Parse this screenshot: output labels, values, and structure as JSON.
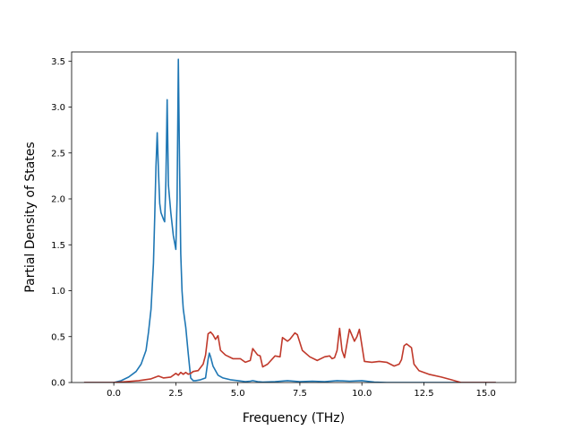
{
  "chart_data": {
    "type": "line",
    "title": "",
    "xlabel": "Frequency (THz)",
    "ylabel": "Partial Density of States",
    "xlim": [
      -1.7,
      16.2
    ],
    "ylim": [
      0,
      3.6
    ],
    "xticks": [
      0.0,
      2.5,
      5.0,
      7.5,
      10.0,
      12.5,
      15.0
    ],
    "xtick_labels": [
      "0.0",
      "2.5",
      "5.0",
      "7.5",
      "10.0",
      "12.5",
      "15.0"
    ],
    "yticks": [
      0.0,
      0.5,
      1.0,
      1.5,
      2.0,
      2.5,
      3.0,
      3.5
    ],
    "ytick_labels": [
      "0.0",
      "0.5",
      "1.0",
      "1.5",
      "2.0",
      "2.5",
      "3.0",
      "3.5"
    ],
    "grid": false,
    "legend": false,
    "series": [
      {
        "color": "#1f77b4",
        "x": [
          -1.2,
          0.0,
          0.3,
          0.6,
          0.9,
          1.1,
          1.3,
          1.4,
          1.5,
          1.6,
          1.65,
          1.7,
          1.75,
          1.8,
          1.85,
          1.9,
          2.0,
          2.05,
          2.1,
          2.15,
          2.2,
          2.3,
          2.4,
          2.5,
          2.55,
          2.6,
          2.65,
          2.7,
          2.75,
          2.8,
          2.9,
          3.0,
          3.1,
          3.2,
          3.3,
          3.5,
          3.7,
          3.8,
          3.85,
          3.9,
          4.0,
          4.2,
          4.4,
          4.7,
          5.0,
          5.3,
          5.5,
          5.6,
          5.8,
          6.0,
          6.5,
          7.0,
          7.5,
          8.0,
          8.5,
          9.0,
          9.5,
          10.0,
          10.5,
          11.0,
          12.0,
          13.0,
          14.0,
          15.4
        ],
        "values": [
          0.0,
          0.0,
          0.02,
          0.06,
          0.12,
          0.2,
          0.35,
          0.55,
          0.8,
          1.3,
          1.8,
          2.35,
          2.72,
          2.3,
          1.95,
          1.85,
          1.78,
          1.75,
          2.2,
          3.08,
          2.15,
          1.85,
          1.6,
          1.45,
          2.0,
          3.52,
          2.4,
          1.4,
          1.0,
          0.8,
          0.6,
          0.32,
          0.05,
          0.02,
          0.02,
          0.03,
          0.05,
          0.25,
          0.32,
          0.28,
          0.18,
          0.08,
          0.05,
          0.03,
          0.02,
          0.01,
          0.015,
          0.02,
          0.01,
          0.005,
          0.01,
          0.02,
          0.01,
          0.015,
          0.01,
          0.02,
          0.015,
          0.02,
          0.005,
          0.0,
          0.0,
          0.0,
          0.0,
          0.0
        ]
      },
      {
        "color": "#c0392b",
        "x": [
          -1.2,
          0.0,
          0.5,
          1.0,
          1.5,
          1.8,
          2.0,
          2.3,
          2.5,
          2.6,
          2.7,
          2.8,
          2.9,
          3.0,
          3.1,
          3.2,
          3.4,
          3.6,
          3.7,
          3.8,
          3.9,
          4.0,
          4.1,
          4.2,
          4.3,
          4.5,
          4.8,
          5.1,
          5.3,
          5.5,
          5.6,
          5.8,
          5.9,
          6.0,
          6.2,
          6.5,
          6.7,
          6.8,
          7.0,
          7.1,
          7.3,
          7.4,
          7.6,
          7.9,
          8.2,
          8.5,
          8.7,
          8.8,
          8.9,
          9.0,
          9.1,
          9.2,
          9.3,
          9.5,
          9.7,
          9.8,
          9.9,
          10.1,
          10.4,
          10.7,
          11.0,
          11.3,
          11.5,
          11.6,
          11.7,
          11.8,
          12.0,
          12.1,
          12.3,
          12.7,
          13.2,
          13.6,
          14.0,
          15.4
        ],
        "values": [
          0.0,
          0.0,
          0.01,
          0.02,
          0.04,
          0.07,
          0.05,
          0.06,
          0.1,
          0.08,
          0.11,
          0.09,
          0.11,
          0.09,
          0.1,
          0.12,
          0.13,
          0.2,
          0.3,
          0.53,
          0.55,
          0.52,
          0.47,
          0.51,
          0.35,
          0.3,
          0.26,
          0.26,
          0.22,
          0.24,
          0.37,
          0.3,
          0.29,
          0.17,
          0.2,
          0.29,
          0.28,
          0.49,
          0.45,
          0.47,
          0.54,
          0.52,
          0.35,
          0.28,
          0.24,
          0.28,
          0.29,
          0.26,
          0.27,
          0.35,
          0.59,
          0.35,
          0.27,
          0.58,
          0.45,
          0.5,
          0.58,
          0.23,
          0.22,
          0.23,
          0.22,
          0.18,
          0.2,
          0.25,
          0.4,
          0.42,
          0.38,
          0.2,
          0.13,
          0.09,
          0.06,
          0.03,
          0.0,
          0.0
        ]
      }
    ]
  }
}
